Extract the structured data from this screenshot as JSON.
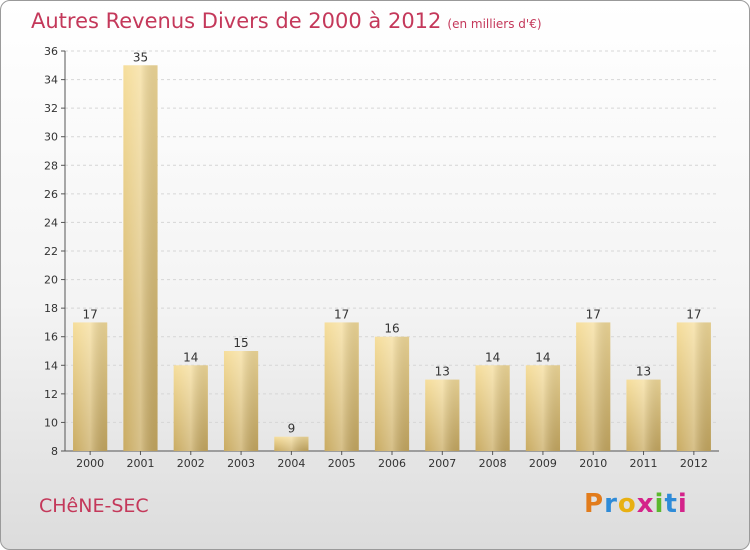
{
  "chart_data": {
    "type": "bar",
    "title": "Autres Revenus Divers de 2000 à 2012",
    "title_unit": "(en milliers d'€)",
    "categories": [
      "2000",
      "2001",
      "2002",
      "2003",
      "2004",
      "2005",
      "2006",
      "2007",
      "2008",
      "2009",
      "2010",
      "2011",
      "2012"
    ],
    "values": [
      17,
      35,
      14,
      15,
      9,
      17,
      16,
      13,
      14,
      14,
      17,
      13,
      17
    ],
    "ylim": [
      8,
      36
    ],
    "yticks": [
      8,
      10,
      12,
      14,
      16,
      18,
      20,
      22,
      24,
      26,
      28,
      30,
      32,
      34,
      36
    ],
    "grid": true,
    "bar_color": "#e8cf8a"
  },
  "commune": "CHêNE-SEC",
  "logo": {
    "letters": [
      "P",
      "r",
      "o",
      "x",
      "i",
      "t",
      "i"
    ],
    "colors": [
      "#e27c1c",
      "#2e8bd8",
      "#e8b012",
      "#d4238a",
      "#5cb82e",
      "#2e8bd8",
      "#d4238a"
    ]
  }
}
